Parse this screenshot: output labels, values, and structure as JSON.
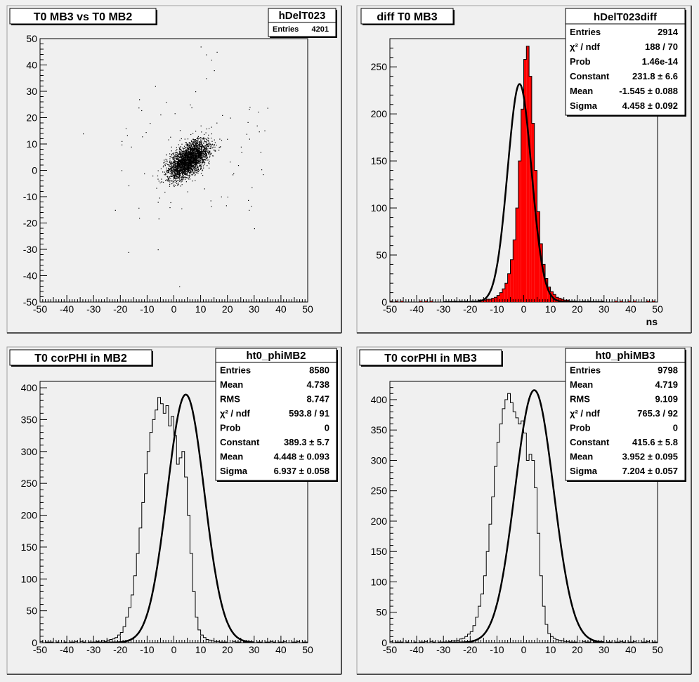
{
  "pads": [
    {
      "title": "T0 MB3 vs T0 MB2",
      "stats": {
        "name": "hDelT023",
        "rows": [
          {
            "label": "Entries",
            "value": "4201"
          }
        ]
      },
      "xunit": ""
    },
    {
      "title": "diff T0 MB3",
      "stats": {
        "name": "hDelT023diff",
        "rows": [
          {
            "label": "Entries",
            "value": "2914"
          },
          {
            "label": "χ² / ndf",
            "value": "188 / 70"
          },
          {
            "label": "Prob",
            "value": "1.46e-14"
          },
          {
            "label": "Constant",
            "value": "231.8 ± 6.6"
          },
          {
            "label": "Mean",
            "value": "-1.545 ± 0.088"
          },
          {
            "label": "Sigma",
            "value": "4.458 ± 0.092"
          }
        ]
      },
      "xunit": "ns"
    },
    {
      "title": "T0 corPHI in MB2",
      "stats": {
        "name": "ht0_phiMB2",
        "rows": [
          {
            "label": "Entries",
            "value": "8580"
          },
          {
            "label": "Mean",
            "value": "4.738"
          },
          {
            "label": "RMS",
            "value": "8.747"
          },
          {
            "label": "χ² / ndf",
            "value": "593.8 / 91"
          },
          {
            "label": "Prob",
            "value": "0"
          },
          {
            "label": "Constant",
            "value": "389.3 ± 5.7"
          },
          {
            "label": "Mean",
            "value": "4.448 ± 0.093"
          },
          {
            "label": "Sigma",
            "value": "6.937 ± 0.058"
          }
        ]
      },
      "xunit": ""
    },
    {
      "title": "T0 corPHI in MB3",
      "stats": {
        "name": "ht0_phiMB3",
        "rows": [
          {
            "label": "Entries",
            "value": "9798"
          },
          {
            "label": "Mean",
            "value": "4.719"
          },
          {
            "label": "RMS",
            "value": "9.109"
          },
          {
            "label": "χ² / ndf",
            "value": "765.3 / 92"
          },
          {
            "label": "Prob",
            "value": "0"
          },
          {
            "label": "Constant",
            "value": "415.6 ± 5.8"
          },
          {
            "label": "Mean",
            "value": "3.952 ± 0.095"
          },
          {
            "label": "Sigma",
            "value": "7.204 ± 0.057"
          }
        ]
      },
      "xunit": ""
    }
  ],
  "chart_data": [
    {
      "type": "scatter",
      "title": "T0 MB3 vs T0 MB2",
      "xlim": [
        -50,
        50
      ],
      "ylim": [
        -50,
        50
      ],
      "xticks": [
        -50,
        -40,
        -30,
        -20,
        -10,
        0,
        10,
        20,
        30,
        40,
        50
      ],
      "yticks": [
        -50,
        -40,
        -30,
        -20,
        -10,
        0,
        10,
        20,
        30,
        40,
        50
      ],
      "entries": 4201,
      "main_cluster": [
        [
          0,
          4
        ],
        [
          2,
          5
        ],
        [
          4,
          6
        ],
        [
          6,
          8
        ],
        [
          8,
          10
        ],
        [
          10,
          11
        ],
        [
          12,
          12
        ],
        [
          14,
          14
        ],
        [
          3,
          2
        ],
        [
          1,
          7
        ],
        [
          7,
          5
        ],
        [
          9,
          13
        ],
        [
          11,
          9
        ],
        [
          5,
          10
        ],
        [
          -2,
          0
        ],
        [
          0,
          -3
        ],
        [
          -4,
          3
        ],
        [
          -6,
          0
        ],
        [
          13,
          16
        ],
        [
          15,
          10
        ],
        [
          -1,
          9
        ],
        [
          6,
          3
        ],
        [
          8,
          15
        ],
        [
          17,
          12
        ],
        [
          -8,
          -2
        ],
        [
          2,
          -4
        ],
        [
          4,
          12
        ],
        [
          10,
          17
        ],
        [
          -3,
          6
        ],
        [
          12,
          6
        ]
      ],
      "outliers": [
        [
          10,
          47
        ],
        [
          12,
          44
        ],
        [
          14,
          42
        ],
        [
          16,
          45
        ],
        [
          15,
          38
        ],
        [
          12,
          35
        ],
        [
          -7,
          32
        ],
        [
          -13,
          27
        ],
        [
          -3,
          26
        ],
        [
          -34,
          14
        ],
        [
          -18,
          16
        ],
        [
          31,
          17
        ],
        [
          25,
          9
        ],
        [
          -22,
          -15
        ],
        [
          -17,
          -31
        ],
        [
          -6,
          -30
        ],
        [
          2,
          -44
        ],
        [
          28,
          -15
        ],
        [
          -13,
          -18
        ],
        [
          30,
          -22
        ],
        [
          -6,
          -12
        ],
        [
          5,
          -8
        ],
        [
          18,
          21
        ],
        [
          20,
          -10
        ],
        [
          -16,
          9
        ],
        [
          21,
          20
        ],
        [
          8,
          30
        ],
        [
          6,
          25
        ],
        [
          -9,
          18
        ],
        [
          24,
          2
        ]
      ],
      "grid": false
    },
    {
      "type": "bar",
      "title": "diff T0 MB3",
      "xlabel": "ns",
      "xlim": [
        -50,
        50
      ],
      "ylim": [
        0,
        280
      ],
      "xticks": [
        -50,
        -40,
        -30,
        -20,
        -10,
        0,
        10,
        20,
        30,
        40,
        50
      ],
      "yticks": [
        0,
        50,
        100,
        150,
        200,
        250
      ],
      "bin_width": 1,
      "bin_edges_start": -20,
      "values": [
        1,
        1,
        1,
        2,
        2,
        2,
        3,
        3,
        4,
        5,
        7,
        10,
        14,
        20,
        30,
        45,
        66,
        100,
        150,
        205,
        258,
        272,
        240,
        190,
        140,
        96,
        62,
        40,
        25,
        16,
        11,
        8,
        5,
        4,
        3,
        2,
        2,
        1,
        1,
        1
      ],
      "fit": {
        "function": "gaus",
        "constant": 231.8,
        "mean": -1.545,
        "sigma": 4.458
      },
      "fill_color": "#ff0000",
      "grid": false
    },
    {
      "type": "bar",
      "title": "T0 corPHI in MB2",
      "xlim": [
        -50,
        50
      ],
      "ylim": [
        0,
        410
      ],
      "xticks": [
        -50,
        -40,
        -30,
        -20,
        -10,
        0,
        10,
        20,
        30,
        40,
        50
      ],
      "yticks": [
        0,
        50,
        100,
        150,
        200,
        250,
        300,
        350,
        400
      ],
      "bin_width": 1,
      "bin_edges_start": -30,
      "values": [
        1,
        2,
        1,
        3,
        2,
        4,
        5,
        6,
        8,
        12,
        16,
        25,
        40,
        55,
        75,
        105,
        140,
        180,
        220,
        265,
        300,
        330,
        350,
        365,
        385,
        375,
        360,
        372,
        340,
        355,
        325,
        280,
        290,
        300,
        260,
        200,
        140,
        80,
        40,
        20,
        12,
        8,
        5,
        4,
        3,
        2,
        2,
        1,
        1,
        1
      ],
      "fit": {
        "function": "gaus",
        "constant": 389.3,
        "mean": 4.448,
        "sigma": 6.937
      },
      "fill_color": "none",
      "grid": false
    },
    {
      "type": "bar",
      "title": "T0 corPHI in MB3",
      "xlim": [
        -50,
        50
      ],
      "ylim": [
        0,
        430
      ],
      "xticks": [
        -50,
        -40,
        -30,
        -20,
        -10,
        0,
        10,
        20,
        30,
        40,
        50
      ],
      "yticks": [
        0,
        50,
        100,
        150,
        200,
        250,
        300,
        350,
        400
      ],
      "bin_width": 1,
      "bin_edges_start": -30,
      "values": [
        1,
        1,
        2,
        3,
        3,
        4,
        6,
        7,
        10,
        14,
        18,
        28,
        42,
        60,
        80,
        110,
        150,
        195,
        240,
        290,
        330,
        360,
        385,
        400,
        410,
        395,
        380,
        370,
        360,
        365,
        345,
        300,
        310,
        300,
        255,
        180,
        110,
        60,
        30,
        15,
        10,
        7,
        5,
        4,
        3,
        2,
        2,
        1,
        1,
        1
      ],
      "fit": {
        "function": "gaus",
        "constant": 415.6,
        "mean": 3.952,
        "sigma": 7.204
      },
      "fill_color": "none",
      "grid": false
    }
  ]
}
